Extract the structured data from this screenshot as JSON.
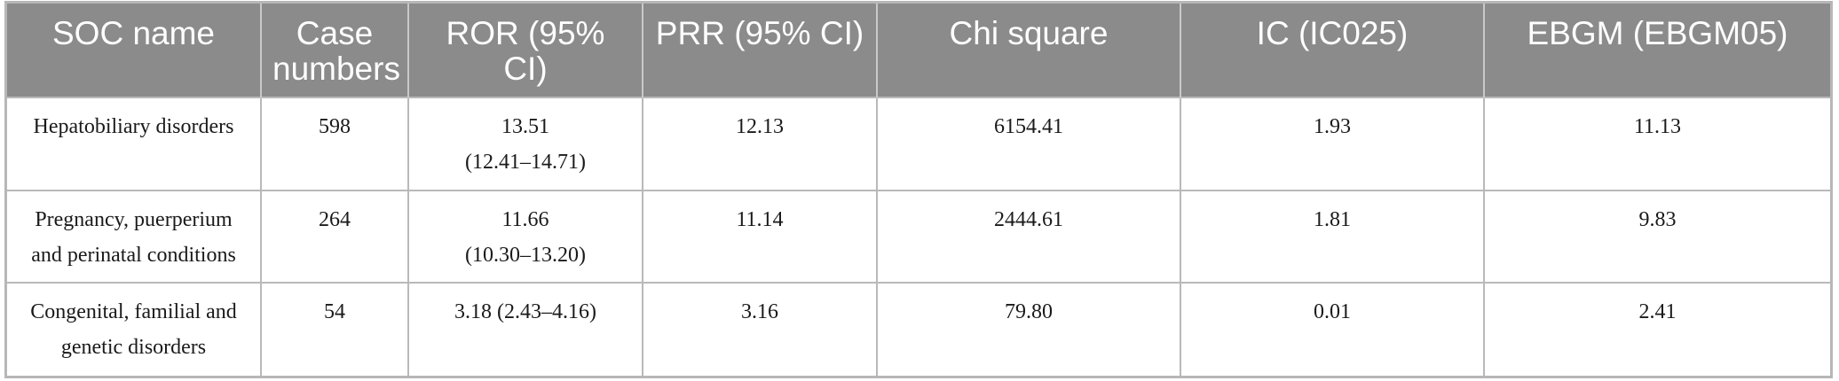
{
  "table": {
    "headers": [
      "SOC name",
      "Case numbers",
      "ROR (95% CI)",
      "PRR (95% CI)",
      "Chi square",
      "IC (IC025)",
      "EBGM (EBGM05)"
    ],
    "rows": [
      {
        "soc_name": "Hepatobiliary disorders",
        "case_numbers": "598",
        "ror": "13.51",
        "ror_ci": "(12.41–14.71)",
        "prr": "12.13",
        "chi_square": "6154.41",
        "ic": "1.93",
        "ebgm": "11.13"
      },
      {
        "soc_name": "Pregnancy, puerperium and perinatal conditions",
        "case_numbers": "264",
        "ror": "11.66",
        "ror_ci": "(10.30–13.20)",
        "prr": "11.14",
        "chi_square": "2444.61",
        "ic": "1.81",
        "ebgm": "9.83"
      },
      {
        "soc_name": "Congenital, familial and genetic disorders",
        "case_numbers": "54",
        "ror": "3.18 (2.43–4.16)",
        "ror_ci": "",
        "prr": "3.16",
        "chi_square": "79.80",
        "ic": "0.01",
        "ebgm": "2.41"
      }
    ]
  }
}
